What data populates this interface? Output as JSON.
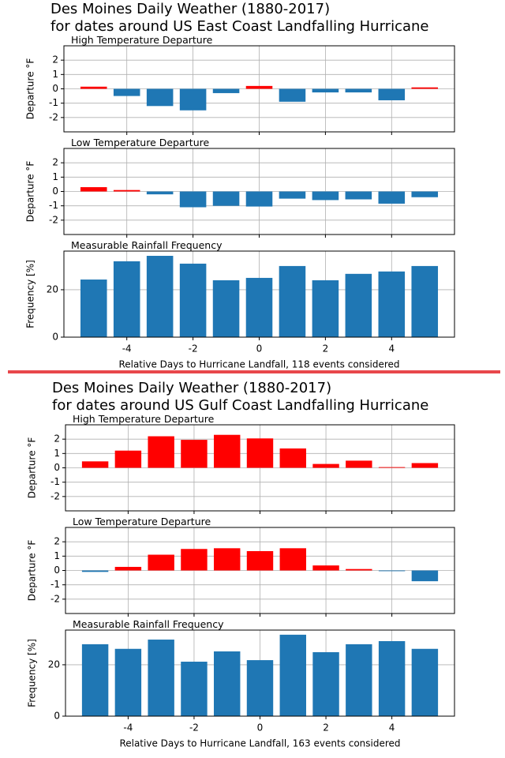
{
  "chart_data": [
    {
      "type": "bar",
      "suptitle": [
        "Des Moines Daily Weather (1880-2017)",
        "for dates around US East Coast Landfalling Hurricane"
      ],
      "title": "High Temperature Departure",
      "ylabel": "Departure °F",
      "x": [
        -5,
        -4,
        -3,
        -2,
        -1,
        0,
        1,
        2,
        3,
        4,
        5
      ],
      "values": [
        0.15,
        -0.5,
        -1.2,
        -1.5,
        -0.3,
        0.2,
        -0.9,
        -0.25,
        -0.25,
        -0.8,
        0.1
      ],
      "positive_color": "#ff0000",
      "negative_color": "#1f77b4",
      "xlim": [
        -5.9,
        5.9
      ],
      "xticks": [
        -4,
        -2,
        0,
        2,
        4
      ],
      "ylim": [
        -3,
        3
      ],
      "yticks": [
        -2,
        -1,
        0,
        1,
        2
      ],
      "grid": true
    },
    {
      "type": "bar",
      "title": "Low Temperature Departure",
      "ylabel": "Departure °F",
      "x": [
        -5,
        -4,
        -3,
        -2,
        -1,
        0,
        1,
        2,
        3,
        4,
        5
      ],
      "values": [
        0.3,
        0.1,
        -0.2,
        -1.1,
        -1.0,
        -1.05,
        -0.5,
        -0.6,
        -0.55,
        -0.85,
        -0.4
      ],
      "positive_color": "#ff0000",
      "negative_color": "#1f77b4",
      "xlim": [
        -5.9,
        5.9
      ],
      "xticks": [
        -4,
        -2,
        0,
        2,
        4
      ],
      "ylim": [
        -3,
        3
      ],
      "yticks": [
        -2,
        -1,
        0,
        1,
        2
      ],
      "grid": true
    },
    {
      "type": "bar",
      "title": "Measurable Rainfall Frequency",
      "ylabel": "Frequency [%]",
      "xlabel": "Relative Days to Hurricane Landfall, 118 events considered",
      "x": [
        -5,
        -4,
        -3,
        -2,
        -1,
        0,
        1,
        2,
        3,
        4,
        5
      ],
      "values": [
        24.3,
        32,
        34.3,
        31,
        24,
        25,
        30,
        24,
        26.7,
        27.7,
        30
      ],
      "color": "#1f77b4",
      "xlim": [
        -5.9,
        5.9
      ],
      "xticks": [
        -4,
        -2,
        0,
        2,
        4
      ],
      "ylim": [
        0,
        36.3
      ],
      "yticks": [
        0,
        20
      ],
      "grid": true
    },
    {
      "type": "bar",
      "suptitle": [
        "Des Moines Daily Weather (1880-2017)",
        "for dates around US Gulf Coast Landfalling Hurricane"
      ],
      "title": "High Temperature Departure",
      "ylabel": "Departure °F",
      "x": [
        -5,
        -4,
        -3,
        -2,
        -1,
        0,
        1,
        2,
        3,
        4,
        5
      ],
      "values": [
        0.45,
        1.2,
        2.2,
        1.95,
        2.3,
        2.05,
        1.35,
        0.27,
        0.5,
        0.05,
        0.33
      ],
      "positive_color": "#ff0000",
      "negative_color": "#1f77b4",
      "xlim": [
        -5.9,
        5.9
      ],
      "xticks": [
        -4,
        -2,
        0,
        2,
        4
      ],
      "ylim": [
        -3,
        3
      ],
      "yticks": [
        -2,
        -1,
        0,
        1,
        2
      ],
      "grid": true
    },
    {
      "type": "bar",
      "title": "Low Temperature Departure",
      "ylabel": "Departure °F",
      "x": [
        -5,
        -4,
        -3,
        -2,
        -1,
        0,
        1,
        2,
        3,
        4,
        5
      ],
      "values": [
        -0.1,
        0.25,
        1.1,
        1.5,
        1.55,
        1.35,
        1.55,
        0.35,
        0.1,
        -0.05,
        -0.75
      ],
      "positive_color": "#ff0000",
      "negative_color": "#1f77b4",
      "xlim": [
        -5.9,
        5.9
      ],
      "xticks": [
        -4,
        -2,
        0,
        2,
        4
      ],
      "ylim": [
        -3,
        3
      ],
      "yticks": [
        -2,
        -1,
        0,
        1,
        2
      ],
      "grid": true
    },
    {
      "type": "bar",
      "title": "Measurable Rainfall Frequency",
      "ylabel": "Frequency [%]",
      "xlabel": "Relative Days to Hurricane Landfall, 163 events considered",
      "x": [
        -5,
        -4,
        -3,
        -2,
        -1,
        0,
        1,
        2,
        3,
        4,
        5
      ],
      "values": [
        28,
        26.2,
        29.8,
        21.2,
        25.2,
        21.8,
        31.7,
        24.9,
        28,
        29.2,
        26.2
      ],
      "color": "#1f77b4",
      "xlim": [
        -5.9,
        5.9
      ],
      "xticks": [
        -4,
        -2,
        0,
        2,
        4
      ],
      "ylim": [
        0,
        33.5
      ],
      "yticks": [
        0,
        20
      ],
      "grid": true
    }
  ]
}
